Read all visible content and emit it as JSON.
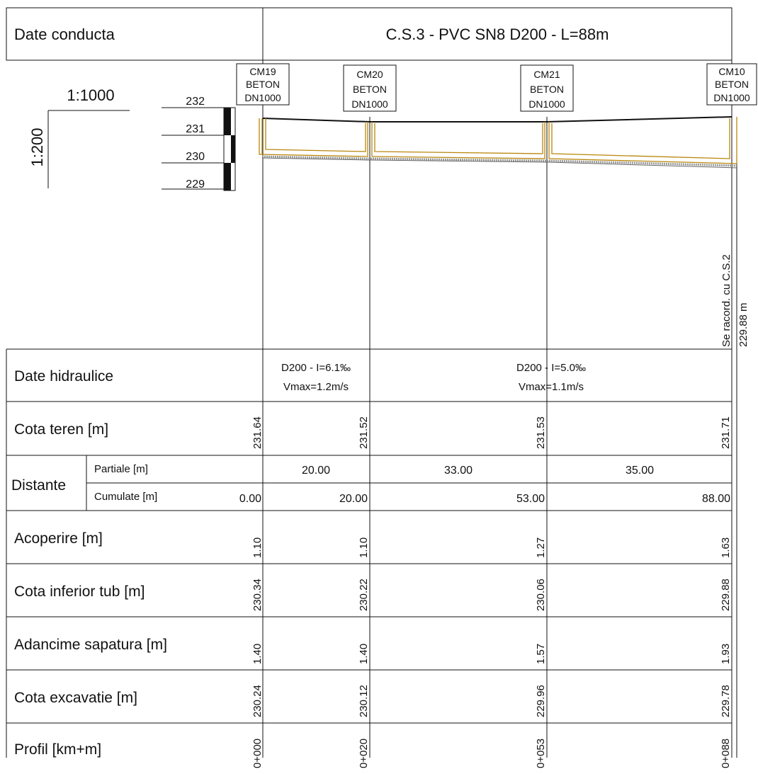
{
  "header": {
    "label": "Date conducta",
    "title": "C.S.3 - PVC SN8 D200 - L=88m"
  },
  "scale": {
    "horizontal": "1:1000",
    "vertical": "1:200",
    "elevation_ticks": [
      "232",
      "231",
      "230",
      "229"
    ]
  },
  "manholes": [
    {
      "name": "CM19",
      "material": "BETON",
      "size": "DN1000"
    },
    {
      "name": "CM20",
      "material": "BETON",
      "size": "DN1000"
    },
    {
      "name": "CM21",
      "material": "BETON",
      "size": "DN1000"
    },
    {
      "name": "CM10",
      "material": "BETON",
      "size": "DN1000"
    }
  ],
  "connection_note": {
    "text": "Se racord. cu C.S.2",
    "elevation": "229.88 m"
  },
  "hydraulic": {
    "label": "Date hidraulice",
    "segments": [
      {
        "line1": "D200 - I=6.1‰",
        "line2": "Vmax=1.2m/s"
      },
      {
        "line1": "D200 - I=5.0‰",
        "line2": "Vmax=1.1m/s"
      }
    ]
  },
  "rows": {
    "cota_teren": {
      "label": "Cota teren [m]",
      "values": [
        "231.64",
        "231.52",
        "231.53",
        "231.71"
      ]
    },
    "distante": {
      "label": "Distante",
      "partiale_label": "Partiale [m]",
      "partiale": [
        "20.00",
        "33.00",
        "35.00"
      ],
      "cumulate_label": "Cumulate [m]",
      "cumulate": [
        "0.00",
        "20.00",
        "53.00",
        "88.00"
      ]
    },
    "acoperire": {
      "label": "Acoperire [m]",
      "values": [
        "1.10",
        "1.10",
        "1.27",
        "1.63"
      ]
    },
    "cota_inferior": {
      "label": "Cota inferior tub [m]",
      "values": [
        "230.34",
        "230.22",
        "230.06",
        "229.88"
      ]
    },
    "adancime": {
      "label": "Adancime sapatura [m]",
      "values": [
        "1.40",
        "1.40",
        "1.57",
        "1.93"
      ]
    },
    "cota_excavatie": {
      "label": "Cota excavatie [m]",
      "values": [
        "230.24",
        "230.12",
        "229.96",
        "229.78"
      ]
    },
    "profil": {
      "label": "Profil [km+m]",
      "values": [
        "0+000",
        "0+020",
        "0+053",
        "0+088"
      ]
    }
  },
  "colors": {
    "trench": "#b8860b",
    "line": "#111111",
    "hatch": "#9a9a9a"
  }
}
